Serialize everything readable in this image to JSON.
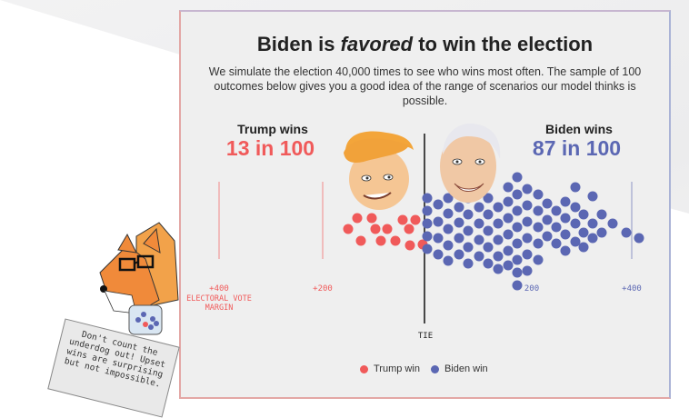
{
  "header": {
    "title_pre": "Biden is ",
    "title_em": "favored",
    "title_post": " to win the election",
    "subtitle": "We simulate the election 40,000 times to see who wins most often. The sample of 100 outcomes below gives you a good idea of the range of scenarios our model thinks is possible."
  },
  "trump": {
    "label": "Trump wins",
    "odds": "13 in 100",
    "color": "#f05a5a"
  },
  "biden": {
    "label": "Biden wins",
    "odds": "87 in 100",
    "color": "#5b67b3"
  },
  "axis": {
    "tie_label": "TIE",
    "margin_label": "ELECTORAL VOTE MARGIN",
    "ticks_trump": [
      "+400",
      "+200"
    ],
    "ticks_biden": [
      "200",
      "+400"
    ]
  },
  "legend": {
    "trump": "Trump win",
    "biden": "Biden win"
  },
  "note": {
    "text": "Don't count the underdog out! Upset wins are surprising but not impossible."
  },
  "icons": {
    "trump_face": "trump-caricature-icon",
    "biden_face": "biden-caricature-icon",
    "fox": "fox-mascot-icon"
  },
  "chart_data": {
    "type": "scatter",
    "outcome_counts": {
      "trump": 13,
      "biden": 87
    },
    "x_axis": "electoral vote margin",
    "xlim": [
      -400,
      400
    ]
  }
}
